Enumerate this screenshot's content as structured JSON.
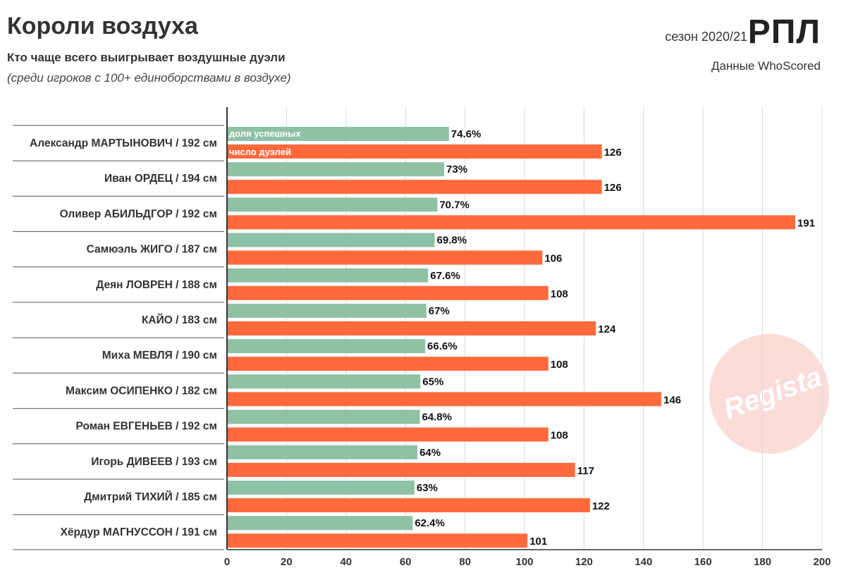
{
  "header": {
    "title": "Короли воздуха",
    "subtitle": "Кто чаще всего выигрывает воздушные дуэли",
    "note": "(среди игроков с 100+ единоборствами в воздухе)",
    "season": "сезон 2020/21",
    "league": "РПЛ",
    "source": "Данные WhoScored",
    "watermark": "Regista"
  },
  "colors": {
    "share": "#8fc1a5",
    "duels": "#ff6a3d",
    "axis": "#333333",
    "grid": "#d9d9d9"
  },
  "chart_data": {
    "type": "bar",
    "orientation": "horizontal",
    "categories": [
      "Александр МАРТЫНОВИЧ / 192 см",
      "Иван ОРДЕЦ / 194 см",
      "Оливер АБИЛЬДГОР / 192 см",
      "Самюэль ЖИГО / 187 см",
      "Деян ЛОВРЕН / 188 см",
      "КАЙО / 183 см",
      "Миха МЕВЛЯ / 190 см",
      "Максим ОСИПЕНКО / 182 см",
      "Роман ЕВГЕНЬЕВ / 192 см",
      "Игорь ДИВЕЕВ / 193 см",
      "Дмитрий ТИХИЙ / 185 см",
      "Хёрдур МАГНУССОН / 191 см"
    ],
    "series": [
      {
        "name": "доля успешных",
        "values": [
          74.6,
          73,
          70.7,
          69.8,
          67.6,
          67,
          66.6,
          65,
          64.8,
          64,
          63,
          62.4
        ],
        "labels": [
          "74.6%",
          "73%",
          "70.7%",
          "69.8%",
          "67.6%",
          "67%",
          "66.6%",
          "65%",
          "64.8%",
          "64%",
          "63%",
          "62.4%"
        ]
      },
      {
        "name": "число дуэлей",
        "values": [
          126,
          126,
          191,
          106,
          108,
          124,
          108,
          146,
          108,
          117,
          122,
          101
        ],
        "labels": [
          "126",
          "126",
          "191",
          "106",
          "108",
          "124",
          "108",
          "146",
          "108",
          "117",
          "122",
          "101"
        ]
      }
    ],
    "xlim": [
      0,
      200
    ],
    "xticks": [
      "0",
      "20",
      "40",
      "60",
      "80",
      "100",
      "120",
      "140",
      "160",
      "180",
      "200"
    ],
    "grid": true,
    "legend": "inside first bars"
  }
}
